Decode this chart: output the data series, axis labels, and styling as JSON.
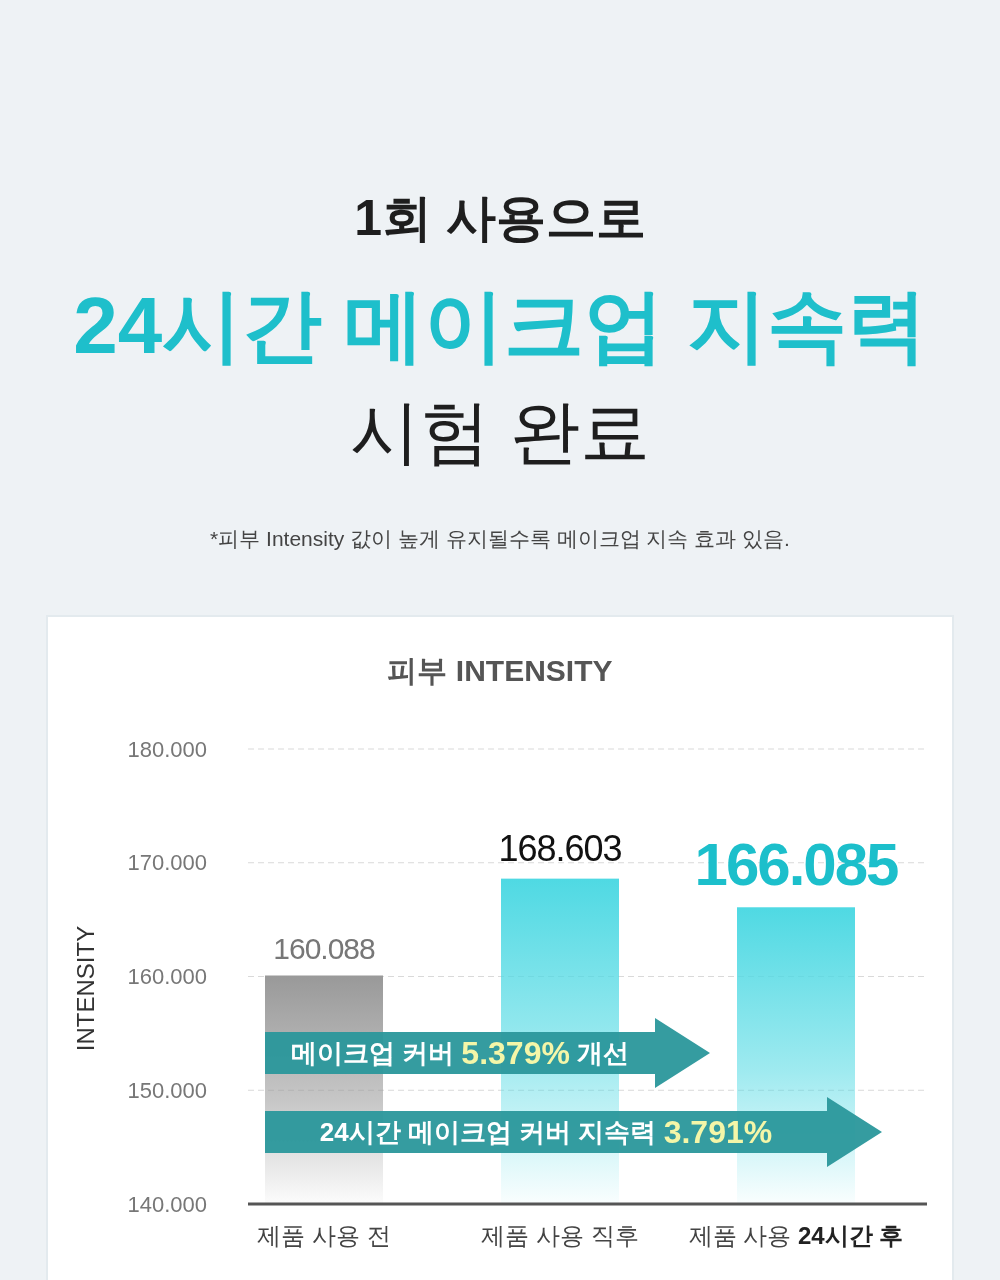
{
  "chart_data": {
    "type": "bar",
    "title": "1회 사용으로\n24시간 메이크업 지속력\n시험 완료",
    "subtitle": "*피부 Intensity 값이 높게 유지될수록 메이크업 지속 효과 있음.",
    "ylabel": "INTENSITY",
    "annotations": [
      "피부 INTENSITY",
      "메이크업 커버 5.379% 개선",
      "24시간 메이크업 커버 지속력 3.791%"
    ],
    "categories": [
      "제품 사용 전",
      "제품 사용 직후",
      "제품 사용 24시간 후"
    ],
    "values": [
      160.088,
      168.603,
      166.085
    ],
    "colors": [
      "#999999",
      "#4fd9e3",
      "#4fd9e3"
    ],
    "ylim": [
      140,
      180
    ],
    "yticks": [
      {
        "value": 140,
        "label": "140.000"
      },
      {
        "value": 150,
        "label": "150.000"
      },
      {
        "value": 160,
        "label": "160.000"
      },
      {
        "value": 170,
        "label": "170.000"
      },
      {
        "value": 180,
        "label": "180.000"
      }
    ],
    "grid": "y",
    "data_labels": true
  }
}
